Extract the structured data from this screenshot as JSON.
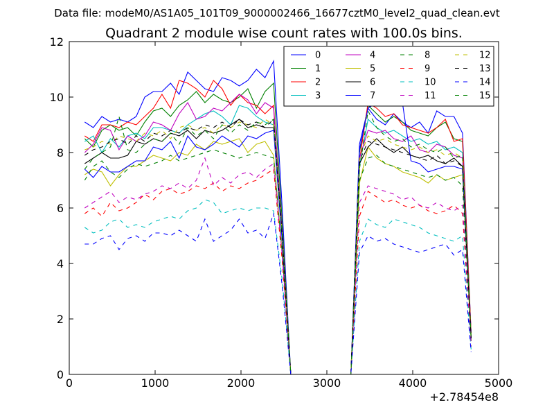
{
  "chart_data": {
    "type": "line",
    "suptitle": "Data file: modeM0/AS1A05_101T09_9000002466_16677cztM0_level2_quad_clean.evt",
    "title": "Quadrant 2 module wise count rates with 100.0s bins.",
    "xlabel": "",
    "ylabel": "",
    "x_offset_label": "+2.78454e8",
    "xlim": [
      0,
      5000
    ],
    "ylim": [
      0,
      12
    ],
    "xticks": [
      0,
      1000,
      2000,
      3000,
      4000,
      5000
    ],
    "yticks": [
      0,
      2,
      4,
      6,
      8,
      10,
      12
    ],
    "xtick_labels": [
      "0",
      "1000",
      "2000",
      "3000",
      "4000",
      "5000"
    ],
    "ytick_labels": [
      "0",
      "2",
      "4",
      "6",
      "8",
      "10",
      "12"
    ],
    "grid": false,
    "legend_position": "top-right",
    "x": [
      180,
      280,
      380,
      480,
      580,
      680,
      780,
      880,
      980,
      1080,
      1180,
      1280,
      1380,
      1480,
      1580,
      1680,
      1780,
      1880,
      1980,
      2080,
      2180,
      2280,
      2380,
      2480,
      2580,
      2680,
      2780,
      2880,
      2980,
      3080,
      3180,
      3280,
      3380,
      3480,
      3580,
      3680,
      3780,
      3880,
      3980,
      4080,
      4180,
      4280,
      4380,
      4480,
      4580,
      4680
    ],
    "series": [
      {
        "name": "0",
        "color": "#0000ff",
        "dash": "solid",
        "values": [
          9.1,
          8.9,
          9.3,
          9.1,
          9.2,
          9.1,
          9.3,
          10.0,
          10.2,
          10.2,
          10.5,
          10.1,
          10.9,
          10.6,
          10.3,
          10.2,
          10.7,
          10.6,
          10.4,
          10.6,
          11.0,
          10.7,
          11.3,
          6.0,
          0,
          0,
          0,
          0,
          0,
          0,
          0,
          0,
          8.3,
          9.6,
          9.2,
          9.0,
          9.4,
          9.1,
          8.9,
          9.1,
          8.7,
          9.5,
          9.3,
          9.3,
          8.7,
          1.5
        ]
      },
      {
        "name": "1",
        "color": "#008000",
        "dash": "solid",
        "values": [
          8.5,
          8.2,
          8.8,
          9.0,
          8.8,
          8.9,
          8.6,
          9.1,
          9.5,
          9.6,
          9.3,
          9.7,
          9.9,
          10.2,
          9.8,
          10.1,
          9.9,
          9.8,
          10.0,
          10.3,
          9.6,
          10.2,
          10.5,
          5.5,
          0,
          0,
          0,
          0,
          0,
          0,
          0,
          0,
          8.0,
          9.7,
          9.4,
          9.1,
          9.3,
          9.1,
          8.8,
          8.7,
          8.6,
          8.9,
          9.1,
          8.5,
          8.4,
          1.4
        ]
      },
      {
        "name": "2",
        "color": "#ff0000",
        "dash": "solid",
        "values": [
          8.6,
          8.4,
          9.0,
          9.0,
          8.9,
          9.1,
          9.0,
          9.3,
          9.6,
          10.1,
          9.6,
          10.6,
          10.5,
          10.3,
          10.0,
          10.6,
          10.3,
          9.7,
          10.1,
          9.8,
          9.7,
          9.4,
          9.7,
          5.0,
          0,
          0,
          0,
          0,
          0,
          0,
          0,
          0,
          7.7,
          9.8,
          9.6,
          9.3,
          9.4,
          9.0,
          8.9,
          8.8,
          8.7,
          8.9,
          9.2,
          8.4,
          8.5,
          1.5
        ]
      },
      {
        "name": "3",
        "color": "#00bfbf",
        "dash": "solid",
        "values": [
          8.4,
          8.6,
          8.0,
          8.5,
          8.2,
          8.6,
          8.7,
          8.5,
          8.9,
          8.9,
          8.8,
          8.7,
          9.0,
          9.2,
          9.4,
          9.5,
          9.3,
          9.0,
          9.7,
          9.6,
          9.3,
          9.1,
          9.0,
          5.0,
          0,
          0,
          0,
          0,
          0,
          0,
          0,
          0,
          7.5,
          9.2,
          8.9,
          8.7,
          8.8,
          8.6,
          8.4,
          8.5,
          8.3,
          8.4,
          8.1,
          8.2,
          8.0,
          1.3
        ]
      },
      {
        "name": "4",
        "color": "#bf00bf",
        "dash": "solid",
        "values": [
          8.0,
          8.3,
          8.9,
          8.8,
          8.1,
          8.6,
          8.4,
          8.6,
          9.1,
          9.0,
          8.8,
          9.4,
          9.8,
          9.2,
          9.3,
          9.6,
          9.5,
          9.8,
          10.1,
          9.9,
          9.4,
          9.8,
          9.6,
          5.2,
          0,
          0,
          0,
          0,
          0,
          0,
          0,
          0,
          7.8,
          8.8,
          8.7,
          8.8,
          8.5,
          8.4,
          8.6,
          8.1,
          8.0,
          8.3,
          8.2,
          7.9,
          7.8,
          1.3
        ]
      },
      {
        "name": "5",
        "color": "#bfbf00",
        "dash": "solid",
        "values": [
          7.2,
          7.4,
          7.3,
          6.8,
          7.2,
          7.5,
          7.5,
          7.7,
          7.9,
          7.8,
          7.7,
          8.0,
          7.9,
          8.3,
          8.1,
          8.4,
          8.3,
          8.4,
          8.5,
          8.0,
          8.3,
          8.4,
          7.9,
          4.4,
          0,
          0,
          0,
          0,
          0,
          0,
          0,
          0,
          6.9,
          8.2,
          7.8,
          7.6,
          7.5,
          7.3,
          7.2,
          7.1,
          6.9,
          7.2,
          7.0,
          7.1,
          7.2,
          1.2
        ]
      },
      {
        "name": "6",
        "color": "#000000",
        "dash": "solid",
        "values": [
          7.6,
          7.8,
          8.0,
          7.8,
          7.8,
          7.9,
          8.4,
          8.3,
          8.5,
          8.4,
          8.7,
          8.6,
          8.8,
          8.5,
          8.8,
          8.7,
          8.8,
          9.0,
          9.2,
          8.9,
          9.0,
          8.9,
          8.9,
          4.9,
          0,
          0,
          0,
          0,
          0,
          0,
          0,
          0,
          7.6,
          8.2,
          8.5,
          8.2,
          8.0,
          8.2,
          7.9,
          7.8,
          7.9,
          7.7,
          7.6,
          7.8,
          7.5,
          1.3
        ]
      },
      {
        "name": "7",
        "color": "#0000ff",
        "dash": "solid",
        "values": [
          7.4,
          7.1,
          7.5,
          7.3,
          7.3,
          7.5,
          7.7,
          7.7,
          8.2,
          8.1,
          8.4,
          7.8,
          8.6,
          8.2,
          8.1,
          8.3,
          8.6,
          8.4,
          8.2,
          8.6,
          8.5,
          8.7,
          8.8,
          4.8,
          0,
          0,
          0,
          0,
          0,
          0,
          0,
          0,
          8.1,
          9.6,
          9.8,
          9.9,
          10.1,
          9.8,
          7.7,
          7.6,
          7.3,
          7.4,
          7.5,
          7.5,
          7.4,
          1.3
        ]
      },
      {
        "name": "8",
        "color": "#008000",
        "dash": "dashed",
        "values": [
          7.0,
          7.5,
          7.7,
          7.3,
          7.1,
          7.4,
          7.6,
          7.5,
          7.6,
          7.7,
          7.9,
          7.7,
          7.8,
          7.9,
          8.0,
          8.1,
          8.0,
          7.9,
          7.8,
          7.9,
          8.0,
          7.9,
          7.8,
          4.4,
          0,
          0,
          0,
          0,
          0,
          0,
          0,
          0,
          7.0,
          7.8,
          7.9,
          7.6,
          7.5,
          7.4,
          7.3,
          7.2,
          7.1,
          7.2,
          7.0,
          7.1,
          6.8,
          1.2
        ]
      },
      {
        "name": "9",
        "color": "#ff0000",
        "dash": "dashed",
        "values": [
          5.8,
          6.0,
          5.7,
          6.2,
          5.9,
          6.0,
          6.2,
          6.5,
          6.3,
          6.6,
          6.7,
          6.5,
          6.6,
          6.8,
          6.7,
          6.9,
          6.6,
          6.8,
          6.7,
          6.9,
          7.0,
          7.2,
          7.4,
          4.1,
          0,
          0,
          0,
          0,
          0,
          0,
          0,
          0,
          5.7,
          6.6,
          6.4,
          6.2,
          6.3,
          6.1,
          6.0,
          6.1,
          5.9,
          5.8,
          5.9,
          6.1,
          5.8,
          1.0
        ]
      },
      {
        "name": "10",
        "color": "#00bfbf",
        "dash": "dashed",
        "values": [
          5.3,
          5.1,
          5.2,
          5.5,
          5.6,
          5.3,
          5.4,
          5.3,
          5.5,
          5.6,
          5.7,
          5.6,
          5.9,
          6.0,
          6.3,
          6.2,
          5.8,
          5.9,
          6.0,
          5.9,
          6.0,
          6.0,
          5.9,
          3.4,
          0,
          0,
          0,
          0,
          0,
          0,
          0,
          0,
          4.8,
          5.6,
          5.4,
          5.3,
          5.6,
          5.5,
          5.4,
          5.3,
          5.1,
          5.0,
          4.9,
          4.8,
          5.0,
          0.9
        ]
      },
      {
        "name": "11",
        "color": "#bf00bf",
        "dash": "dashed",
        "values": [
          6.0,
          6.2,
          6.4,
          6.6,
          6.2,
          6.4,
          6.3,
          6.5,
          6.6,
          6.8,
          6.7,
          6.9,
          6.7,
          7.0,
          7.8,
          6.8,
          7.1,
          6.9,
          7.2,
          7.3,
          7.1,
          7.4,
          7.6,
          4.3,
          0,
          0,
          0,
          0,
          0,
          0,
          0,
          0,
          6.2,
          6.8,
          6.7,
          6.6,
          6.5,
          6.3,
          6.4,
          6.1,
          6.0,
          6.2,
          6.0,
          5.9,
          6.1,
          1.1
        ]
      },
      {
        "name": "12",
        "color": "#bfbf00",
        "dash": "dashed",
        "values": [
          8.1,
          8.2,
          8.4,
          8.3,
          8.6,
          8.5,
          8.4,
          8.7,
          8.6,
          8.8,
          8.5,
          8.9,
          9.0,
          8.8,
          8.9,
          8.7,
          9.0,
          8.9,
          9.1,
          9.0,
          8.9,
          9.2,
          9.0,
          5.1,
          0,
          0,
          0,
          0,
          0,
          0,
          0,
          0,
          7.8,
          8.6,
          8.4,
          8.5,
          8.3,
          8.2,
          8.1,
          8.2,
          8.0,
          8.1,
          7.9,
          8.0,
          7.8,
          1.4
        ]
      },
      {
        "name": "13",
        "color": "#000000",
        "dash": "dashed",
        "values": [
          7.9,
          8.1,
          8.2,
          8.4,
          8.5,
          8.3,
          8.6,
          8.4,
          8.7,
          8.6,
          8.8,
          8.7,
          8.9,
          8.8,
          9.0,
          8.9,
          9.1,
          8.9,
          9.2,
          9.0,
          9.1,
          8.9,
          9.2,
          5.0,
          0,
          0,
          0,
          0,
          0,
          0,
          0,
          0,
          7.7,
          8.4,
          8.3,
          8.2,
          8.1,
          8.0,
          7.9,
          7.8,
          7.7,
          7.9,
          7.6,
          7.7,
          7.5,
          1.3
        ]
      },
      {
        "name": "14",
        "color": "#0000ff",
        "dash": "dashed",
        "values": [
          4.7,
          4.7,
          4.9,
          5.0,
          4.5,
          4.9,
          5.0,
          4.8,
          5.1,
          5.1,
          5.0,
          5.2,
          5.0,
          4.8,
          5.6,
          4.8,
          5.0,
          5.2,
          5.6,
          5.1,
          5.2,
          4.9,
          5.8,
          3.2,
          0,
          0,
          0,
          0,
          0,
          0,
          0,
          0,
          4.4,
          5.0,
          4.8,
          4.9,
          4.7,
          4.6,
          4.5,
          4.4,
          4.5,
          4.6,
          4.7,
          4.3,
          4.5,
          0.8
        ]
      },
      {
        "name": "15",
        "color": "#008000",
        "dash": "dashed",
        "values": [
          7.4,
          7.8,
          8.0,
          8.2,
          9.3,
          8.1,
          8.0,
          8.3,
          8.5,
          8.4,
          8.7,
          8.3,
          8.9,
          8.6,
          8.8,
          8.5,
          9.0,
          8.7,
          9.0,
          8.8,
          9.1,
          9.0,
          9.2,
          5.1,
          0,
          0,
          0,
          0,
          0,
          0,
          0,
          0,
          7.4,
          9.5,
          8.9,
          8.6,
          8.4,
          8.5,
          8.2,
          8.3,
          8.1,
          8.0,
          8.2,
          7.8,
          7.9,
          1.3
        ]
      }
    ]
  }
}
